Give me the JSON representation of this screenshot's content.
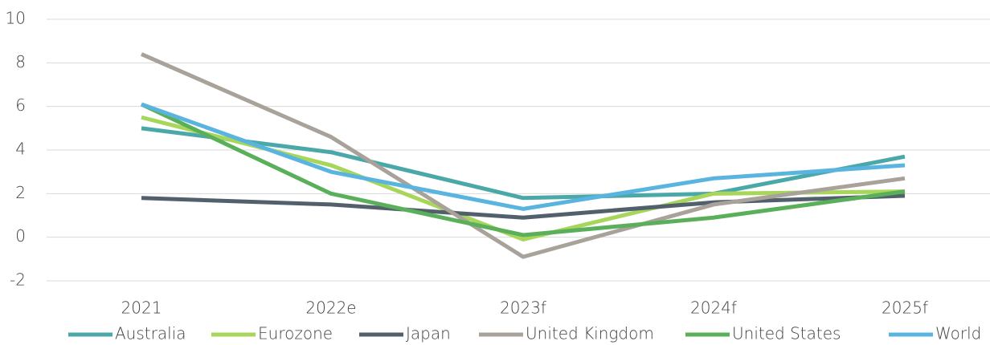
{
  "chart_data": {
    "type": "line",
    "categories": [
      "2021",
      "2022e",
      "2023f",
      "2024f",
      "2025f"
    ],
    "series": [
      {
        "name": "Australia",
        "color": "#4aa8a8",
        "values": [
          5.0,
          3.9,
          1.8,
          2.0,
          3.7
        ]
      },
      {
        "name": "Eurozone",
        "color": "#a8d65a",
        "values": [
          5.5,
          3.3,
          -0.1,
          2.0,
          2.1
        ]
      },
      {
        "name": "Japan",
        "color": "#52606b",
        "values": [
          1.8,
          1.5,
          0.9,
          1.6,
          1.9
        ]
      },
      {
        "name": "United Kingdom",
        "color": "#a9a29a",
        "values": [
          8.4,
          4.6,
          -0.9,
          1.5,
          2.7
        ]
      },
      {
        "name": "United States",
        "color": "#5ab05a",
        "values": [
          6.1,
          2.0,
          0.1,
          0.9,
          2.1
        ]
      },
      {
        "name": "World",
        "color": "#5ab4e0",
        "values": [
          6.1,
          3.0,
          1.3,
          2.7,
          3.3
        ]
      }
    ],
    "ylim": [
      -2,
      10
    ],
    "yticks": [
      -2,
      0,
      2,
      4,
      6,
      8,
      10
    ],
    "grid": true,
    "legend": "bottom"
  }
}
